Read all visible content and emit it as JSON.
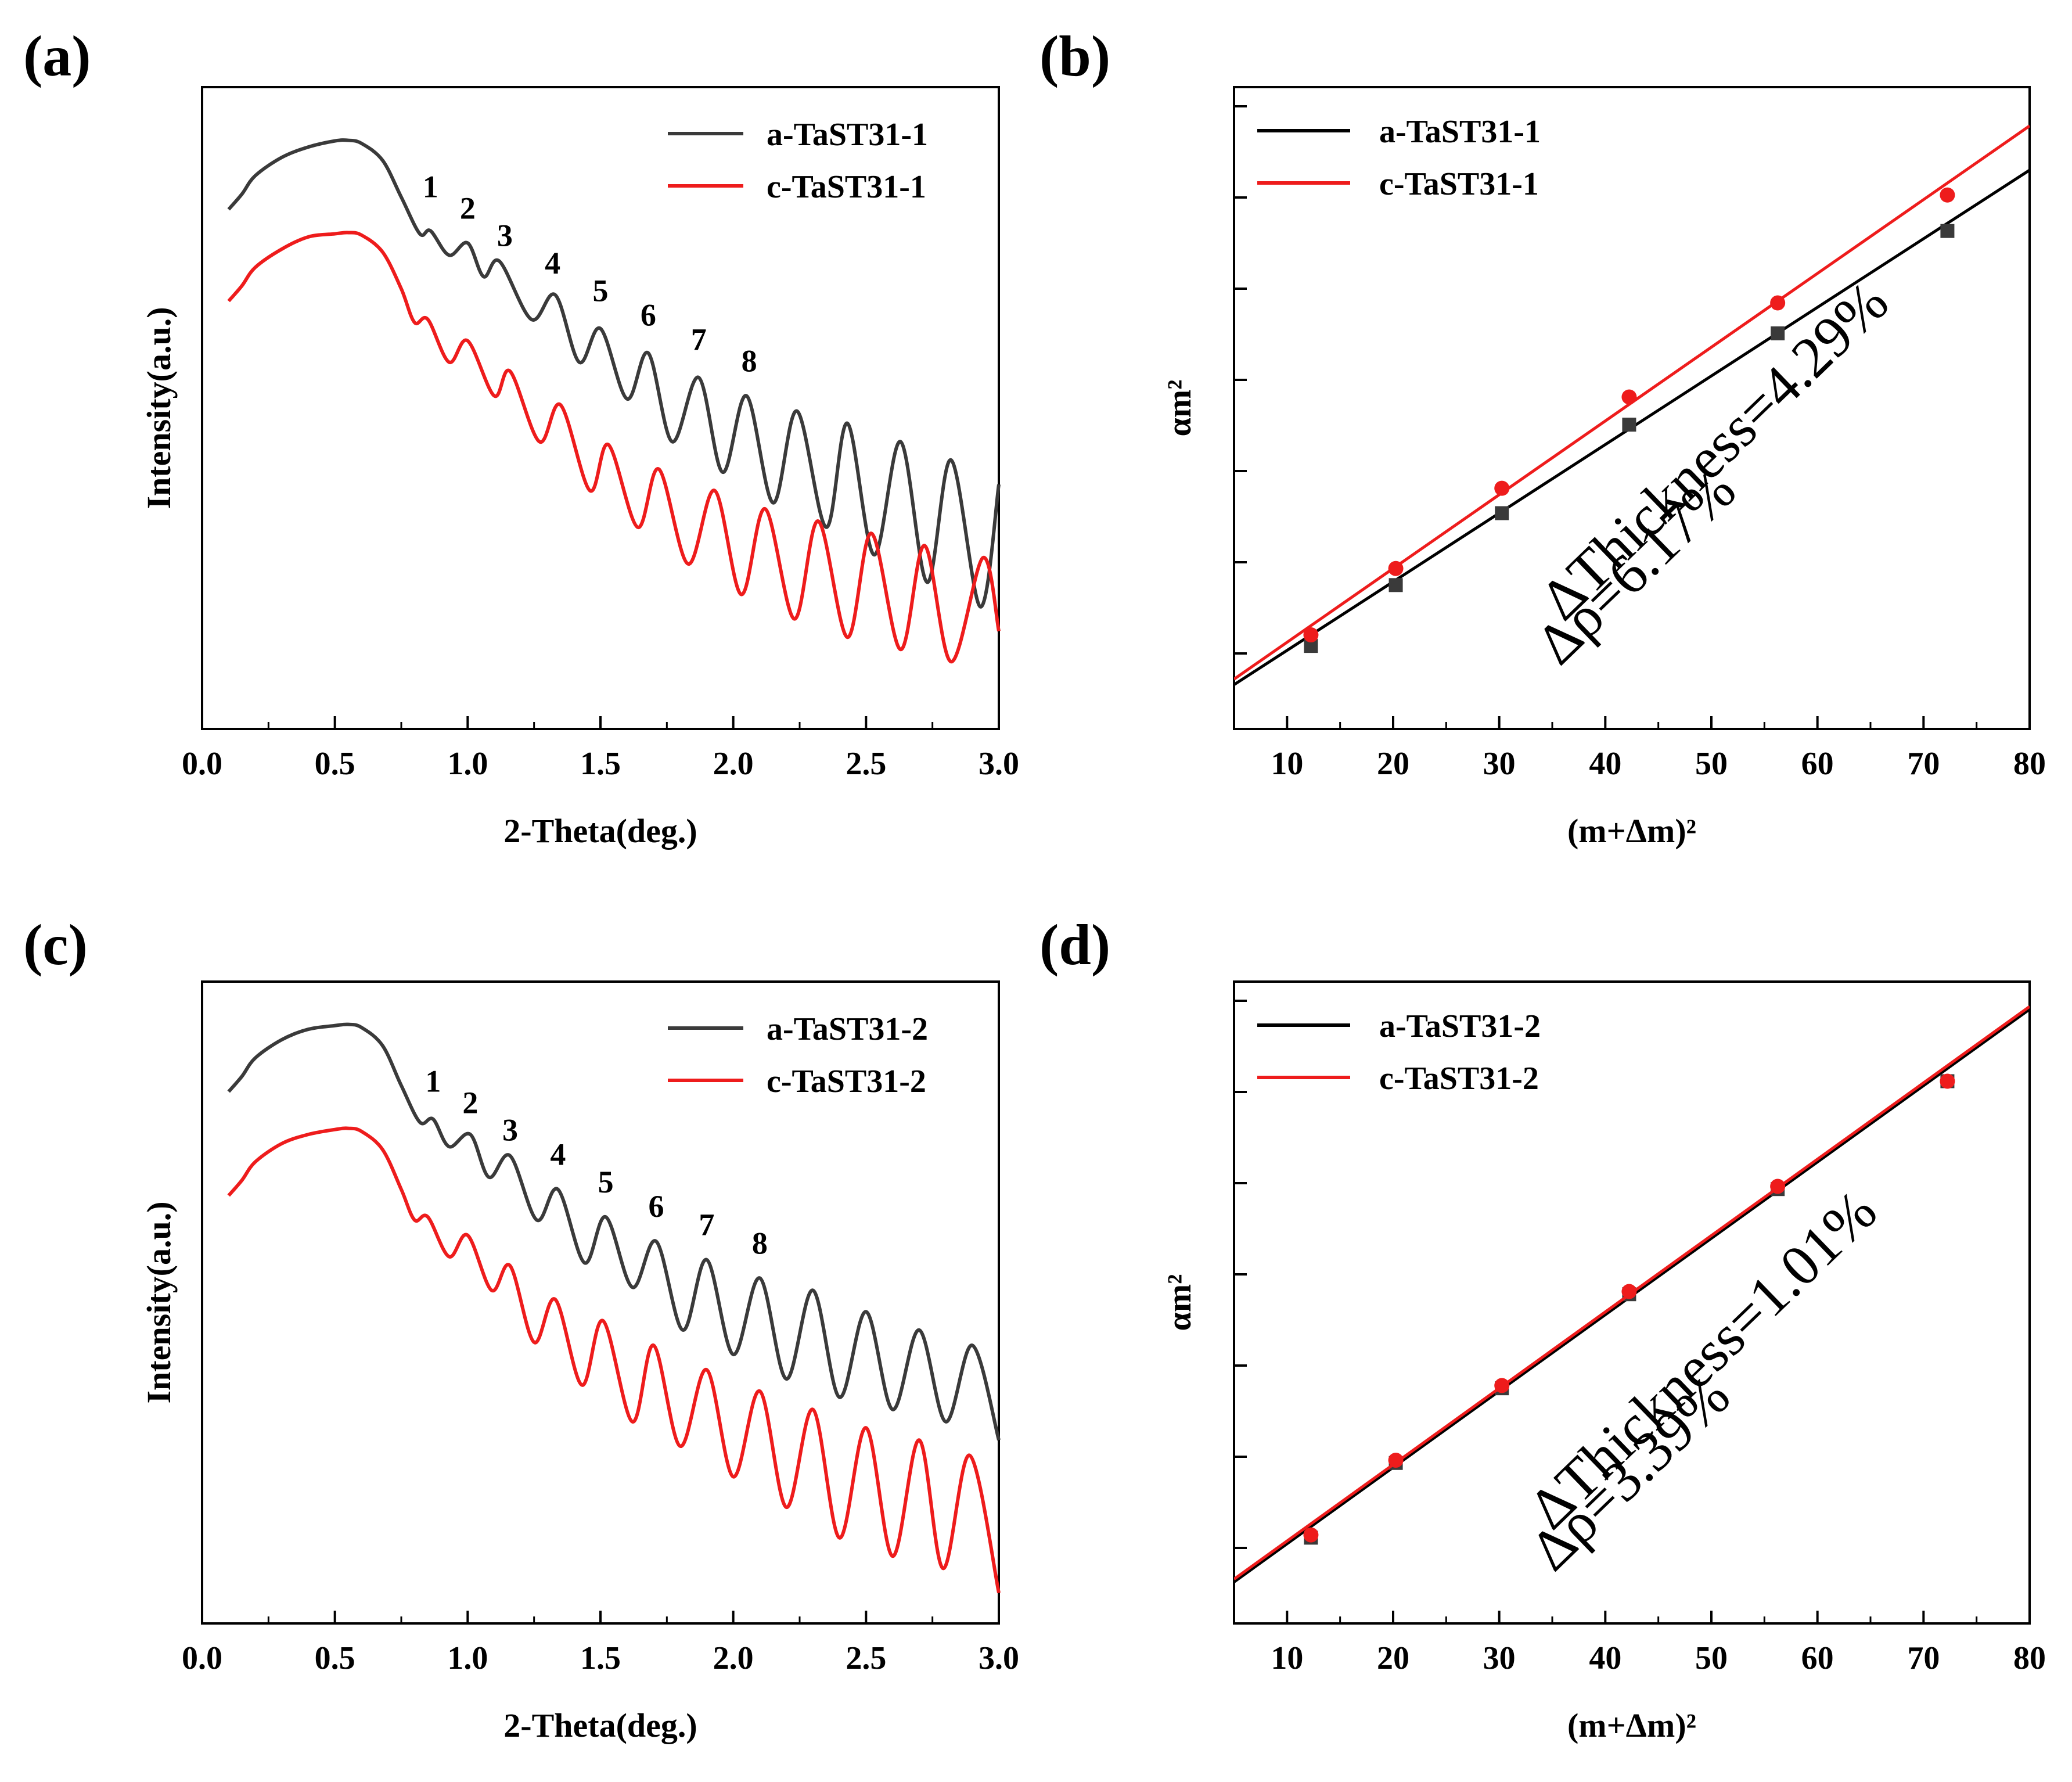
{
  "figure": {
    "panel_labels": [
      "(a)",
      "(b)",
      "(c)",
      "(d)"
    ]
  },
  "colors": {
    "black_series": "#3a3a3a",
    "red_series": "#ee1c1c",
    "fit_black": "#000000",
    "fit_red": "#ee1c1c"
  },
  "chart_data": [
    {
      "panel": "(a)",
      "type": "line",
      "title": "",
      "xlabel": "2-Theta(deg.)",
      "ylabel": "Intensity(a.u.)",
      "xlim": [
        0.0,
        3.0
      ],
      "xticks": [
        0.0,
        0.5,
        1.0,
        1.5,
        2.0,
        2.5,
        3.0
      ],
      "xtick_labels": [
        "0.0",
        "0.5",
        "1.0",
        "1.5",
        "2.0",
        "2.5",
        "3.0"
      ],
      "yticks_shown": false,
      "grid": false,
      "legend_position": "top-right",
      "legend": [
        "a-TaST31-1",
        "c-TaST31-1"
      ],
      "series": [
        {
          "name": "a-TaST31-1",
          "color": "#3a3a3a",
          "x": [
            0.1,
            0.15,
            0.2,
            0.3,
            0.4,
            0.5,
            0.55,
            0.6,
            0.68,
            0.75,
            0.82,
            0.86,
            0.93,
            1.0,
            1.06,
            1.12,
            1.24,
            1.33,
            1.42,
            1.5,
            1.6,
            1.68,
            1.77,
            1.87,
            1.96,
            2.05,
            2.15,
            2.24,
            2.35,
            2.43,
            2.53,
            2.63,
            2.73,
            2.82,
            2.93,
            3.0
          ],
          "values": [
            0.85,
            0.875,
            0.905,
            0.935,
            0.952,
            0.962,
            0.963,
            0.958,
            0.93,
            0.87,
            0.81,
            0.815,
            0.775,
            0.795,
            0.74,
            0.765,
            0.67,
            0.71,
            0.6,
            0.655,
            0.54,
            0.615,
            0.47,
            0.575,
            0.42,
            0.545,
            0.37,
            0.52,
            0.33,
            0.5,
            0.285,
            0.47,
            0.24,
            0.44,
            0.2,
            0.4
          ]
        },
        {
          "name": "c-TaST31-1",
          "color": "#ee1c1c",
          "x": [
            0.1,
            0.15,
            0.2,
            0.3,
            0.4,
            0.5,
            0.55,
            0.6,
            0.68,
            0.75,
            0.8,
            0.85,
            0.93,
            1.0,
            1.1,
            1.16,
            1.27,
            1.35,
            1.46,
            1.53,
            1.64,
            1.72,
            1.83,
            1.93,
            2.03,
            2.12,
            2.23,
            2.32,
            2.43,
            2.52,
            2.63,
            2.72,
            2.82,
            2.94,
            3.0
          ],
          "values": [
            0.7,
            0.725,
            0.755,
            0.785,
            0.805,
            0.81,
            0.812,
            0.808,
            0.78,
            0.72,
            0.665,
            0.67,
            0.6,
            0.635,
            0.545,
            0.585,
            0.47,
            0.53,
            0.39,
            0.465,
            0.33,
            0.425,
            0.27,
            0.39,
            0.22,
            0.36,
            0.18,
            0.34,
            0.15,
            0.32,
            0.13,
            0.3,
            0.11,
            0.28,
            0.16
          ]
        }
      ],
      "annotations": [
        {
          "text": "1",
          "x": 0.86,
          "y": 0.87
        },
        {
          "text": "2",
          "x": 1.0,
          "y": 0.835
        },
        {
          "text": "3",
          "x": 1.14,
          "y": 0.79
        },
        {
          "text": "4",
          "x": 1.32,
          "y": 0.745
        },
        {
          "text": "5",
          "x": 1.5,
          "y": 0.7
        },
        {
          "text": "6",
          "x": 1.68,
          "y": 0.66
        },
        {
          "text": "7",
          "x": 1.87,
          "y": 0.62
        },
        {
          "text": "8",
          "x": 2.06,
          "y": 0.585
        }
      ]
    },
    {
      "panel": "(b)",
      "type": "scatter",
      "title": "",
      "xlabel": "(m+Δm)²",
      "ylabel": "αm²",
      "xlim": [
        5,
        80
      ],
      "xticks": [
        10,
        20,
        30,
        40,
        50,
        60,
        70,
        80
      ],
      "xtick_labels": [
        "10",
        "20",
        "30",
        "40",
        "50",
        "60",
        "70",
        "80"
      ],
      "yticks_shown": false,
      "grid": false,
      "legend_position": "top-left",
      "legend": [
        "a-TaST31-1",
        "c-TaST31-1"
      ],
      "series": [
        {
          "name": "a-TaST31-1",
          "marker": "square",
          "color": "#3a3a3a",
          "x": [
            12.25,
            20.25,
            30.25,
            42.25,
            56.25,
            72.25
          ],
          "values": [
            0.07,
            0.18,
            0.31,
            0.47,
            0.635,
            0.82
          ],
          "fit_line": {
            "x": [
              5,
              80
            ],
            "y": [
              0.0,
              0.93
            ]
          }
        },
        {
          "name": "c-TaST31-1",
          "marker": "circle",
          "color": "#ee1c1c",
          "x": [
            12.25,
            20.25,
            30.25,
            42.25,
            56.25,
            72.25
          ],
          "values": [
            0.09,
            0.21,
            0.355,
            0.52,
            0.69,
            0.885
          ],
          "fit_line": {
            "x": [
              5,
              80
            ],
            "y": [
              0.01,
              1.01
            ]
          }
        }
      ],
      "annotations": [
        "ΔThickness=4.29%",
        "Δρ=6.17%"
      ]
    },
    {
      "panel": "(c)",
      "type": "line",
      "title": "",
      "xlabel": "2-Theta(deg.)",
      "ylabel": "Intensity(a.u.)",
      "xlim": [
        0.0,
        3.0
      ],
      "xticks": [
        0.0,
        0.5,
        1.0,
        1.5,
        2.0,
        2.5,
        3.0
      ],
      "xtick_labels": [
        "0.0",
        "0.5",
        "1.0",
        "1.5",
        "2.0",
        "2.5",
        "3.0"
      ],
      "yticks_shown": false,
      "grid": false,
      "legend_position": "top-right",
      "legend": [
        "a-TaST31-2",
        "c-TaST31-2"
      ],
      "series": [
        {
          "name": "a-TaST31-2",
          "color": "#3a3a3a",
          "x": [
            0.1,
            0.15,
            0.2,
            0.3,
            0.4,
            0.5,
            0.55,
            0.6,
            0.68,
            0.75,
            0.82,
            0.87,
            0.93,
            1.01,
            1.08,
            1.16,
            1.26,
            1.34,
            1.44,
            1.52,
            1.62,
            1.71,
            1.81,
            1.9,
            2.0,
            2.1,
            2.2,
            2.3,
            2.4,
            2.5,
            2.6,
            2.7,
            2.8,
            2.9,
            3.0
          ],
          "values": [
            0.87,
            0.895,
            0.925,
            0.955,
            0.972,
            0.978,
            0.98,
            0.975,
            0.945,
            0.88,
            0.82,
            0.825,
            0.78,
            0.8,
            0.73,
            0.765,
            0.66,
            0.71,
            0.59,
            0.665,
            0.55,
            0.625,
            0.48,
            0.595,
            0.44,
            0.565,
            0.4,
            0.545,
            0.37,
            0.51,
            0.35,
            0.48,
            0.33,
            0.455,
            0.3
          ]
        },
        {
          "name": "c-TaST31-2",
          "color": "#ee1c1c",
          "x": [
            0.1,
            0.15,
            0.2,
            0.3,
            0.4,
            0.5,
            0.55,
            0.6,
            0.68,
            0.75,
            0.8,
            0.85,
            0.93,
            1.0,
            1.09,
            1.16,
            1.25,
            1.33,
            1.43,
            1.51,
            1.62,
            1.7,
            1.8,
            1.9,
            2.0,
            2.1,
            2.2,
            2.3,
            2.4,
            2.5,
            2.6,
            2.7,
            2.79,
            2.89,
            3.0
          ],
          "values": [
            0.7,
            0.725,
            0.755,
            0.785,
            0.8,
            0.808,
            0.81,
            0.805,
            0.775,
            0.71,
            0.66,
            0.665,
            0.6,
            0.635,
            0.545,
            0.585,
            0.46,
            0.53,
            0.39,
            0.495,
            0.33,
            0.455,
            0.29,
            0.415,
            0.24,
            0.38,
            0.19,
            0.35,
            0.14,
            0.32,
            0.11,
            0.3,
            0.09,
            0.275,
            0.05
          ]
        }
      ],
      "annotations": [
        {
          "text": "1",
          "x": 0.87,
          "y": 0.87
        },
        {
          "text": "2",
          "x": 1.01,
          "y": 0.835
        },
        {
          "text": "3",
          "x": 1.16,
          "y": 0.79
        },
        {
          "text": "4",
          "x": 1.34,
          "y": 0.75
        },
        {
          "text": "5",
          "x": 1.52,
          "y": 0.705
        },
        {
          "text": "6",
          "x": 1.71,
          "y": 0.665
        },
        {
          "text": "7",
          "x": 1.9,
          "y": 0.635
        },
        {
          "text": "8",
          "x": 2.1,
          "y": 0.605
        }
      ]
    },
    {
      "panel": "(d)",
      "type": "scatter",
      "title": "",
      "xlabel": "(m+Δm)²",
      "ylabel": "αm²",
      "xlim": [
        5,
        80
      ],
      "xticks": [
        10,
        20,
        30,
        40,
        50,
        60,
        70,
        80
      ],
      "xtick_labels": [
        "10",
        "20",
        "30",
        "40",
        "50",
        "60",
        "70",
        "80"
      ],
      "yticks_shown": false,
      "grid": false,
      "legend_position": "top-left",
      "legend": [
        "a-TaST31-2",
        "c-TaST31-2"
      ],
      "series": [
        {
          "name": "a-TaST31-2",
          "marker": "square",
          "color": "#3a3a3a",
          "x": [
            12.25,
            20.25,
            30.25,
            42.25,
            56.25,
            72.25
          ],
          "values": [
            0.075,
            0.21,
            0.345,
            0.515,
            0.705,
            0.9
          ],
          "fit_line": {
            "x": [
              5,
              80
            ],
            "y": [
              -0.005,
              1.03
            ]
          }
        },
        {
          "name": "c-TaST31-2",
          "marker": "circle",
          "color": "#ee1c1c",
          "x": [
            12.25,
            20.25,
            30.25,
            42.25,
            56.25,
            72.25
          ],
          "values": [
            0.08,
            0.215,
            0.35,
            0.52,
            0.71,
            0.9
          ],
          "fit_line": {
            "x": [
              5,
              80
            ],
            "y": [
              0.0,
              1.035
            ]
          }
        }
      ],
      "annotations": [
        "ΔThickness=1.01%",
        "Δρ=3.39%"
      ]
    }
  ]
}
